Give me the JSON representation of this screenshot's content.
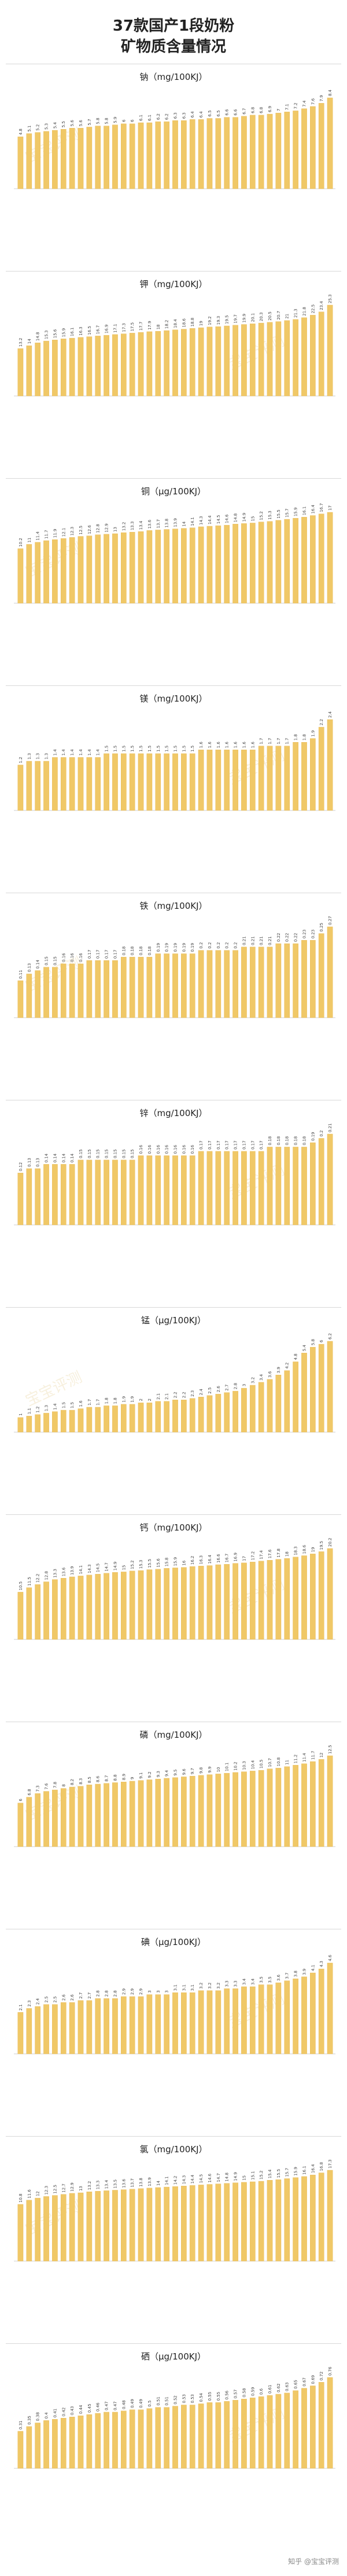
{
  "header": {
    "title_line1": "37款国产1段奶粉",
    "title_line2": "矿物质含量情况"
  },
  "footer": {
    "credit": "知乎 @宝宝评测"
  },
  "watermark_text": "宝宝评测",
  "style": {
    "bar_color": "#f0c867",
    "bar_edge": "#e6b34b"
  },
  "chart_data": [
    {
      "type": "bar",
      "title": "钠（mg/100KJ）",
      "note": "37 bars, values estimated from bar heights (labels too small to read)",
      "values": [
        4.8,
        5.1,
        5.2,
        5.3,
        5.4,
        5.5,
        5.6,
        5.6,
        5.7,
        5.8,
        5.8,
        5.9,
        6.0,
        6.0,
        6.1,
        6.1,
        6.2,
        6.2,
        6.3,
        6.3,
        6.4,
        6.4,
        6.5,
        6.5,
        6.6,
        6.6,
        6.7,
        6.8,
        6.8,
        6.9,
        7.0,
        7.1,
        7.2,
        7.4,
        7.6,
        7.9,
        8.4
      ]
    },
    {
      "type": "bar",
      "title": "钾（mg/100KJ）",
      "note": "37 bars, values estimated",
      "values": [
        13.2,
        14.0,
        14.8,
        15.3,
        15.6,
        15.9,
        16.1,
        16.3,
        16.5,
        16.7,
        16.9,
        17.1,
        17.3,
        17.5,
        17.7,
        17.9,
        18.0,
        18.2,
        18.4,
        18.6,
        18.8,
        19.0,
        19.2,
        19.3,
        19.5,
        19.7,
        19.9,
        20.1,
        20.3,
        20.5,
        20.7,
        21.0,
        21.3,
        21.8,
        22.5,
        23.4,
        25.3
      ]
    },
    {
      "type": "bar",
      "title": "铜（μg/100KJ）",
      "note": "37 bars, values estimated",
      "values": [
        10.2,
        11.0,
        11.4,
        11.7,
        11.9,
        12.1,
        12.3,
        12.5,
        12.6,
        12.8,
        12.9,
        13.0,
        13.2,
        13.3,
        13.4,
        13.6,
        13.7,
        13.8,
        13.9,
        14.0,
        14.1,
        14.3,
        14.4,
        14.5,
        14.6,
        14.8,
        14.9,
        15.0,
        15.2,
        15.3,
        15.5,
        15.7,
        15.9,
        16.1,
        16.4,
        16.7,
        17.0
      ]
    },
    {
      "type": "bar",
      "title": "镁（mg/100KJ）",
      "note": "37 bars, values estimated",
      "values": [
        1.2,
        1.3,
        1.3,
        1.3,
        1.4,
        1.4,
        1.4,
        1.4,
        1.4,
        1.4,
        1.5,
        1.5,
        1.5,
        1.5,
        1.5,
        1.5,
        1.5,
        1.5,
        1.5,
        1.5,
        1.5,
        1.6,
        1.6,
        1.6,
        1.6,
        1.6,
        1.6,
        1.6,
        1.7,
        1.7,
        1.7,
        1.7,
        1.8,
        1.8,
        1.9,
        2.2,
        2.4
      ]
    },
    {
      "type": "bar",
      "title": "铁（mg/100KJ）",
      "note": "37 bars, values estimated",
      "values": [
        0.11,
        0.13,
        0.14,
        0.15,
        0.15,
        0.16,
        0.16,
        0.16,
        0.17,
        0.17,
        0.17,
        0.17,
        0.18,
        0.18,
        0.18,
        0.18,
        0.19,
        0.19,
        0.19,
        0.19,
        0.19,
        0.2,
        0.2,
        0.2,
        0.2,
        0.2,
        0.21,
        0.21,
        0.21,
        0.21,
        0.22,
        0.22,
        0.22,
        0.23,
        0.23,
        0.25,
        0.27
      ]
    },
    {
      "type": "bar",
      "title": "锌（mg/100KJ）",
      "note": "37 bars, values estimated",
      "values": [
        0.12,
        0.13,
        0.13,
        0.14,
        0.14,
        0.14,
        0.14,
        0.15,
        0.15,
        0.15,
        0.15,
        0.15,
        0.15,
        0.15,
        0.16,
        0.16,
        0.16,
        0.16,
        0.16,
        0.16,
        0.16,
        0.17,
        0.17,
        0.17,
        0.17,
        0.17,
        0.17,
        0.17,
        0.17,
        0.18,
        0.18,
        0.18,
        0.18,
        0.18,
        0.19,
        0.2,
        0.21
      ]
    },
    {
      "type": "bar",
      "title": "锰（μg/100KJ）",
      "note": "37 bars, values estimated",
      "values": [
        1.0,
        1.1,
        1.2,
        1.3,
        1.4,
        1.5,
        1.5,
        1.6,
        1.7,
        1.7,
        1.8,
        1.8,
        1.9,
        1.9,
        2.0,
        2.0,
        2.1,
        2.1,
        2.2,
        2.2,
        2.3,
        2.4,
        2.5,
        2.6,
        2.7,
        2.8,
        3.0,
        3.2,
        3.4,
        3.6,
        3.9,
        4.2,
        4.8,
        5.4,
        5.8,
        6.0,
        6.2
      ]
    },
    {
      "type": "bar",
      "title": "钙（mg/100KJ）",
      "note": "37 bars, values estimated",
      "values": [
        10.5,
        11.5,
        12.2,
        12.8,
        13.3,
        13.6,
        13.9,
        14.1,
        14.3,
        14.5,
        14.7,
        14.9,
        15.0,
        15.2,
        15.3,
        15.5,
        15.6,
        15.8,
        15.9,
        16.0,
        16.2,
        16.3,
        16.4,
        16.6,
        16.7,
        16.9,
        17.0,
        17.2,
        17.4,
        17.6,
        17.8,
        18.0,
        18.3,
        18.6,
        19.0,
        19.5,
        20.2
      ]
    },
    {
      "type": "bar",
      "title": "磷（mg/100KJ）",
      "note": "37 bars, values estimated",
      "values": [
        6.0,
        6.8,
        7.3,
        7.6,
        7.8,
        8.0,
        8.2,
        8.3,
        8.5,
        8.6,
        8.7,
        8.8,
        8.9,
        9.0,
        9.1,
        9.2,
        9.3,
        9.4,
        9.5,
        9.6,
        9.7,
        9.8,
        9.9,
        10.0,
        10.1,
        10.2,
        10.3,
        10.4,
        10.5,
        10.7,
        10.8,
        11.0,
        11.2,
        11.4,
        11.7,
        12.0,
        12.5
      ]
    },
    {
      "type": "bar",
      "title": "碘（μg/100KJ）",
      "note": "37 bars, values estimated",
      "values": [
        2.1,
        2.3,
        2.4,
        2.5,
        2.5,
        2.6,
        2.6,
        2.7,
        2.7,
        2.8,
        2.8,
        2.8,
        2.9,
        2.9,
        2.9,
        3.0,
        3.0,
        3.0,
        3.1,
        3.1,
        3.1,
        3.2,
        3.2,
        3.2,
        3.3,
        3.3,
        3.4,
        3.4,
        3.5,
        3.5,
        3.6,
        3.7,
        3.8,
        3.9,
        4.1,
        4.3,
        4.6
      ]
    },
    {
      "type": "bar",
      "title": "氯（mg/100KJ）",
      "note": "37 bars, values estimated",
      "values": [
        10.8,
        11.6,
        12.0,
        12.3,
        12.5,
        12.7,
        12.9,
        13.0,
        13.2,
        13.3,
        13.4,
        13.5,
        13.6,
        13.7,
        13.8,
        13.9,
        14.0,
        14.1,
        14.2,
        14.3,
        14.4,
        14.5,
        14.6,
        14.7,
        14.8,
        14.9,
        15.0,
        15.1,
        15.2,
        15.4,
        15.5,
        15.7,
        15.9,
        16.1,
        16.4,
        16.8,
        17.3
      ]
    },
    {
      "type": "bar",
      "title": "硒（μg/100KJ）",
      "note": "37 bars, values estimated",
      "values": [
        0.31,
        0.35,
        0.38,
        0.4,
        0.41,
        0.42,
        0.43,
        0.44,
        0.45,
        0.46,
        0.47,
        0.47,
        0.48,
        0.49,
        0.49,
        0.5,
        0.51,
        0.51,
        0.52,
        0.53,
        0.53,
        0.54,
        0.55,
        0.55,
        0.56,
        0.57,
        0.58,
        0.59,
        0.6,
        0.61,
        0.62,
        0.63,
        0.65,
        0.67,
        0.69,
        0.72,
        0.76
      ]
    }
  ]
}
